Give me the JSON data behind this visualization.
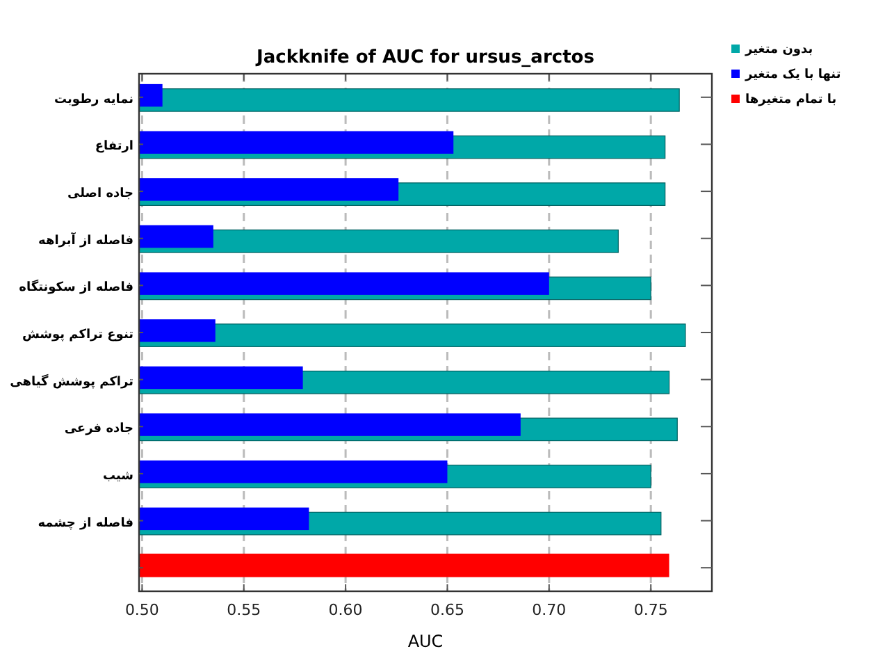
{
  "chart_data": {
    "type": "bar",
    "orientation": "horizontal",
    "title": "Jackknife of AUC for ursus_arctos",
    "xlabel": "AUC",
    "categories": [
      "نمایه رطوبت",
      "ارتفاع",
      "جاده اصلی",
      "فاصله از آبراهه",
      "فاصله از سکونتگاه",
      "تنوع تراکم پوشش",
      "تراکم پوشش گیاهی",
      "جاده فرعی",
      "شیب",
      "فاصله از چشمه",
      null
    ],
    "series": [
      {
        "name": "بدون متغیر",
        "color": "#00a8a8",
        "values": [
          0.764,
          0.757,
          0.757,
          0.734,
          0.75,
          0.767,
          0.759,
          0.763,
          0.75,
          0.755,
          null
        ]
      },
      {
        "name": "تنها با یک متغیر",
        "color": "#0000ff",
        "values": [
          0.51,
          0.653,
          0.626,
          0.535,
          0.7,
          0.536,
          0.579,
          0.686,
          0.65,
          0.582,
          null
        ]
      },
      {
        "name": "با تمام متغیرها",
        "color": "#ff0000",
        "values": [
          null,
          null,
          null,
          null,
          null,
          null,
          null,
          null,
          null,
          null,
          0.759
        ]
      }
    ],
    "xlim": [
      0.4985,
      0.78
    ],
    "xticks": [
      {
        "value": 0.5,
        "label": "0.50"
      },
      {
        "value": 0.55,
        "label": "0.55"
      },
      {
        "value": 0.6,
        "label": "0.60"
      },
      {
        "value": 0.65,
        "label": "0.65"
      },
      {
        "value": 0.7,
        "label": "0.70"
      },
      {
        "value": 0.75,
        "label": "0.75"
      }
    ],
    "grid": "x",
    "legend": "right"
  }
}
